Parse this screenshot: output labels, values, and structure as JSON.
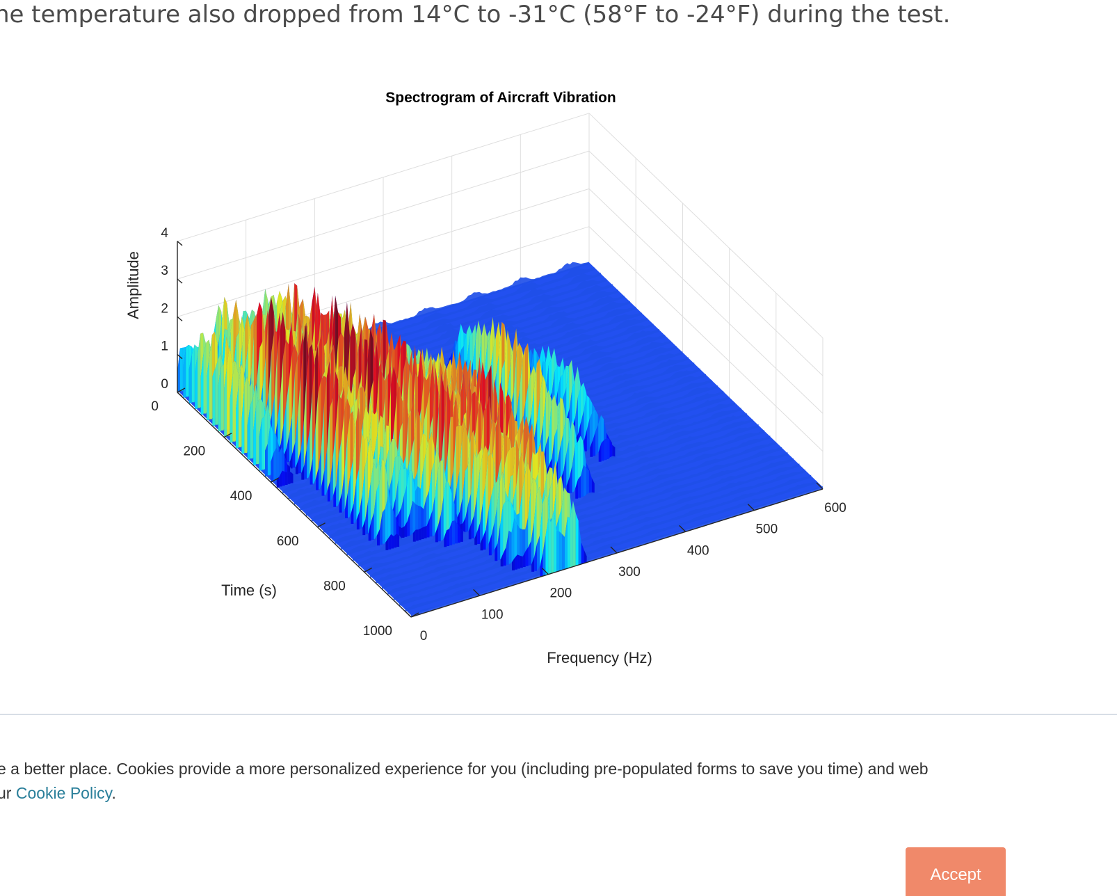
{
  "article": {
    "line": "he temperature also dropped from 14°C to -31°C (58°F to -24°F) during the test."
  },
  "chart_data": {
    "type": "surface",
    "title": "Spectrogram of Aircraft Vibration",
    "xlabel": "Frequency (Hz)",
    "ylabel": "Time (s)",
    "zlabel": "Amplitude",
    "xlim": [
      0,
      600
    ],
    "ylim": [
      0,
      1000
    ],
    "zlim": [
      0,
      4
    ],
    "x_ticks": [
      "0",
      "100",
      "200",
      "300",
      "400",
      "500",
      "600"
    ],
    "y_ticks": [
      "0",
      "200",
      "400",
      "600",
      "800",
      "1000"
    ],
    "z_ticks": [
      "0",
      "1",
      "2",
      "3",
      "4"
    ],
    "grid": true,
    "colormap": "jet",
    "frequency_peaks": [
      {
        "freq": 10,
        "max_amplitude": 2.0,
        "time_span": [
          0,
          380
        ]
      },
      {
        "freq": 60,
        "max_amplitude": 3.2,
        "time_span": [
          0,
          700
        ]
      },
      {
        "freq": 100,
        "max_amplitude": 2.5,
        "time_span": [
          0,
          700
        ]
      },
      {
        "freq": 130,
        "max_amplitude": 3.2,
        "time_span": [
          0,
          760
        ]
      },
      {
        "freq": 175,
        "max_amplitude": 3.0,
        "time_span": [
          100,
          900
        ]
      },
      {
        "freq": 205,
        "max_amplitude": 2.7,
        "time_span": [
          300,
          1000
        ]
      },
      {
        "freq": 235,
        "max_amplitude": 2.8,
        "time_span": [
          300,
          1000
        ]
      },
      {
        "freq": 330,
        "max_amplitude": 2.3,
        "time_span": [
          250,
          750
        ]
      },
      {
        "freq": 395,
        "max_amplitude": 1.5,
        "time_span": [
          350,
          650
        ]
      }
    ]
  },
  "cookie_banner": {
    "text_line1": "e a better place. Cookies provide a more personalized experience for you (including pre-populated forms to save you time) and web",
    "text_line2_prefix": "ur ",
    "policy_link": "Cookie Policy",
    "text_line2_suffix": ".",
    "accept_label": "Accept"
  }
}
